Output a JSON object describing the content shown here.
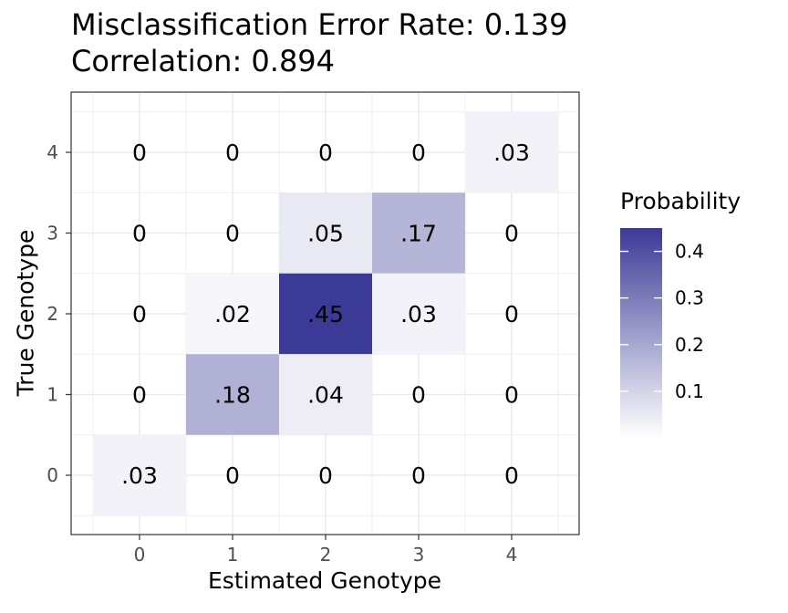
{
  "title_lines": [
    "Misclassification Error Rate: 0.139",
    "Correlation: 0.894"
  ],
  "chart_data": {
    "type": "heatmap",
    "title": "Misclassification Error Rate: 0.139\nCorrelation: 0.894",
    "xlabel": "Estimated Genotype",
    "ylabel": "True Genotype",
    "x_categories": [
      "0",
      "1",
      "2",
      "3",
      "4"
    ],
    "y_categories": [
      "0",
      "1",
      "2",
      "3",
      "4"
    ],
    "cells": [
      {
        "x": 0,
        "y": 4,
        "value": 0,
        "label": "0"
      },
      {
        "x": 1,
        "y": 4,
        "value": 0,
        "label": "0"
      },
      {
        "x": 2,
        "y": 4,
        "value": 0,
        "label": "0"
      },
      {
        "x": 3,
        "y": 4,
        "value": 0,
        "label": "0"
      },
      {
        "x": 4,
        "y": 4,
        "value": 0.03,
        "label": ".03"
      },
      {
        "x": 0,
        "y": 3,
        "value": 0,
        "label": "0"
      },
      {
        "x": 1,
        "y": 3,
        "value": 0,
        "label": "0"
      },
      {
        "x": 2,
        "y": 3,
        "value": 0.05,
        "label": ".05"
      },
      {
        "x": 3,
        "y": 3,
        "value": 0.17,
        "label": ".17"
      },
      {
        "x": 4,
        "y": 3,
        "value": 0,
        "label": "0"
      },
      {
        "x": 0,
        "y": 2,
        "value": 0,
        "label": "0"
      },
      {
        "x": 1,
        "y": 2,
        "value": 0.02,
        "label": ".02"
      },
      {
        "x": 2,
        "y": 2,
        "value": 0.45,
        "label": ".45"
      },
      {
        "x": 3,
        "y": 2,
        "value": 0.03,
        "label": ".03"
      },
      {
        "x": 4,
        "y": 2,
        "value": 0,
        "label": "0"
      },
      {
        "x": 0,
        "y": 1,
        "value": 0,
        "label": "0"
      },
      {
        "x": 1,
        "y": 1,
        "value": 0.18,
        "label": ".18"
      },
      {
        "x": 2,
        "y": 1,
        "value": 0.04,
        "label": ".04"
      },
      {
        "x": 3,
        "y": 1,
        "value": 0,
        "label": "0"
      },
      {
        "x": 4,
        "y": 1,
        "value": 0,
        "label": "0"
      },
      {
        "x": 0,
        "y": 0,
        "value": 0.03,
        "label": ".03"
      },
      {
        "x": 1,
        "y": 0,
        "value": 0,
        "label": "0"
      },
      {
        "x": 2,
        "y": 0,
        "value": 0,
        "label": "0"
      },
      {
        "x": 3,
        "y": 0,
        "value": 0,
        "label": "0"
      },
      {
        "x": 4,
        "y": 0,
        "value": 0,
        "label": "0"
      }
    ],
    "legend": {
      "title": "Probability",
      "ticks": [
        0.1,
        0.2,
        0.3,
        0.4
      ],
      "tick_labels": [
        "0.1",
        "0.2",
        "0.3",
        "0.4"
      ],
      "range": [
        0,
        0.45
      ],
      "low_color": "#ffffff",
      "high_color": "#3b3a96",
      "placement": "right"
    },
    "grid": true
  }
}
